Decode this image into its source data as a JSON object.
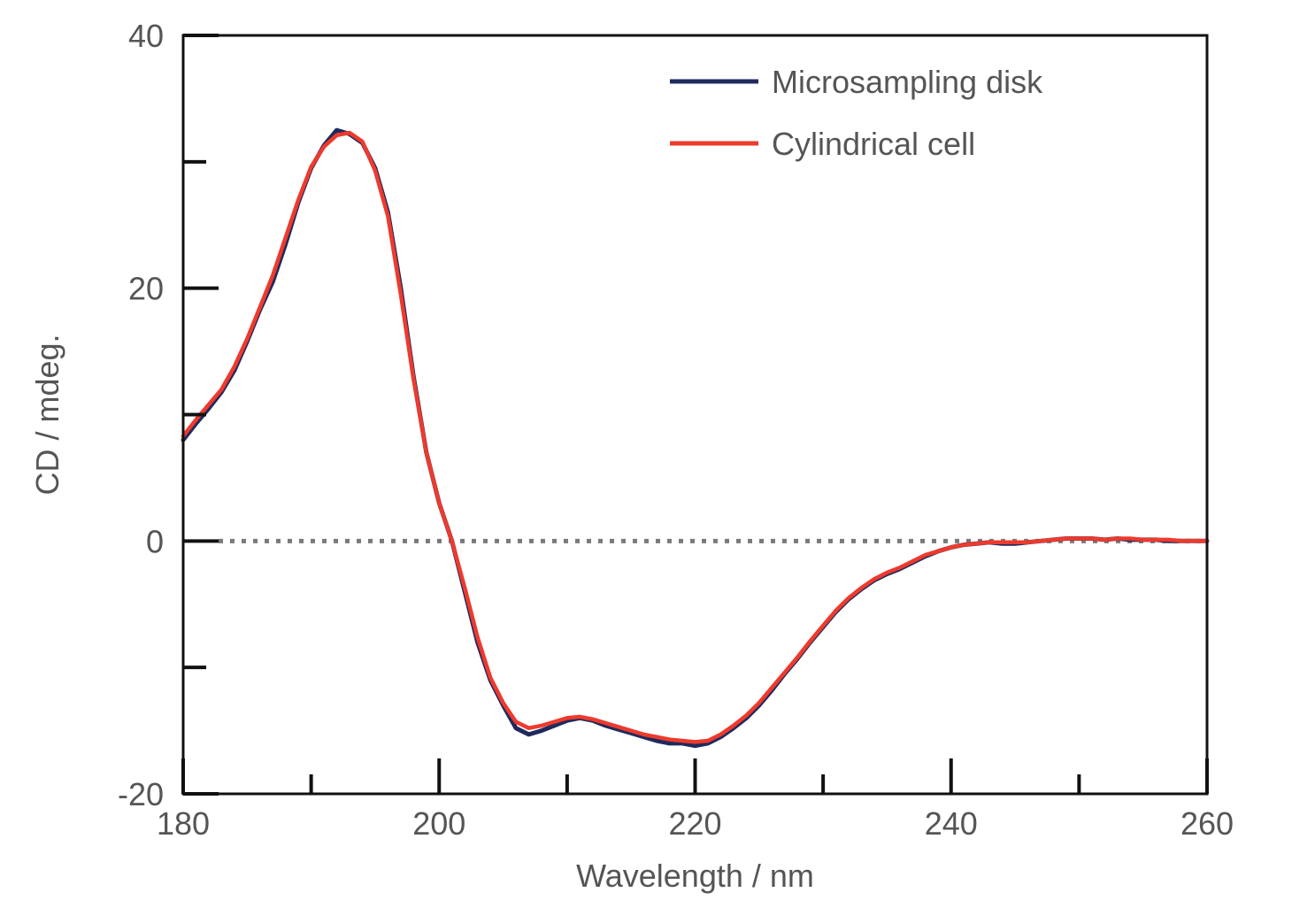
{
  "chart_data": {
    "type": "line",
    "title": "",
    "xlabel": "Wavelength / nm",
    "ylabel": "CD / mdeg.",
    "xlim": [
      180,
      260
    ],
    "ylim": [
      -20,
      40
    ],
    "x_ticks": [
      180,
      200,
      220,
      240,
      260
    ],
    "x_tick_labels": [
      "180",
      "200",
      "220",
      "240",
      "260"
    ],
    "x_minor_ticks": [
      190,
      210,
      230,
      250
    ],
    "y_ticks": [
      -20,
      0,
      20,
      40
    ],
    "y_tick_labels": [
      "-20",
      "0",
      "20",
      "40"
    ],
    "y_minor_ticks": [
      -10,
      10,
      30
    ],
    "grid": false,
    "zero_line": {
      "y": 0,
      "style": "dotted",
      "color": "#7a7a7a"
    },
    "legend": {
      "position": "top-right"
    },
    "series": [
      {
        "name": "Microsampling disk",
        "color": "#1f2a5c",
        "x": [
          180,
          181,
          182,
          183,
          184,
          185,
          186,
          187,
          188,
          189,
          190,
          191,
          192,
          193,
          194,
          195,
          196,
          197,
          198,
          199,
          200,
          201,
          202,
          203,
          204,
          205,
          206,
          207,
          208,
          209,
          210,
          211,
          212,
          213,
          214,
          215,
          216,
          217,
          218,
          219,
          220,
          221,
          222,
          223,
          224,
          225,
          226,
          227,
          228,
          229,
          230,
          231,
          232,
          233,
          234,
          235,
          236,
          237,
          238,
          239,
          240,
          241,
          242,
          243,
          244,
          245,
          246,
          247,
          248,
          249,
          250,
          251,
          252,
          253,
          254,
          255,
          256,
          257,
          258,
          259,
          260
        ],
        "values": [
          8.0,
          9.3,
          10.5,
          11.8,
          13.5,
          15.8,
          18.3,
          20.5,
          23.5,
          26.8,
          29.5,
          31.3,
          32.5,
          32.2,
          31.5,
          29.5,
          26.0,
          20.0,
          13.0,
          7.0,
          3.0,
          0.0,
          -4.0,
          -8.0,
          -11.0,
          -13.0,
          -14.8,
          -15.3,
          -15.0,
          -14.6,
          -14.2,
          -14.0,
          -14.2,
          -14.6,
          -14.9,
          -15.2,
          -15.5,
          -15.8,
          -16.0,
          -16.0,
          -16.2,
          -16.0,
          -15.5,
          -14.8,
          -14.0,
          -13.0,
          -11.8,
          -10.5,
          -9.3,
          -8.0,
          -6.8,
          -5.6,
          -4.6,
          -3.8,
          -3.1,
          -2.6,
          -2.2,
          -1.7,
          -1.2,
          -0.8,
          -0.5,
          -0.3,
          -0.2,
          -0.1,
          -0.2,
          -0.2,
          -0.1,
          0.0,
          0.1,
          0.2,
          0.2,
          0.2,
          0.1,
          0.2,
          0.1,
          0.1,
          0.1,
          0.0,
          0.0,
          0.0,
          0.0
        ]
      },
      {
        "name": "Cylindrical cell",
        "color": "#ee3a2d",
        "x": [
          180,
          181,
          182,
          183,
          184,
          185,
          186,
          187,
          188,
          189,
          190,
          191,
          192,
          193,
          194,
          195,
          196,
          197,
          198,
          199,
          200,
          201,
          202,
          203,
          204,
          205,
          206,
          207,
          208,
          209,
          210,
          211,
          212,
          213,
          214,
          215,
          216,
          217,
          218,
          219,
          220,
          221,
          222,
          223,
          224,
          225,
          226,
          227,
          228,
          229,
          230,
          231,
          232,
          233,
          234,
          235,
          236,
          237,
          238,
          239,
          240,
          241,
          242,
          243,
          244,
          245,
          246,
          247,
          248,
          249,
          250,
          251,
          252,
          253,
          254,
          255,
          256,
          257,
          258,
          259,
          260
        ],
        "values": [
          8.3,
          9.6,
          10.8,
          12.0,
          13.8,
          16.0,
          18.5,
          21.0,
          24.0,
          27.0,
          29.6,
          31.2,
          32.1,
          32.3,
          31.6,
          29.3,
          25.7,
          19.5,
          12.8,
          7.0,
          3.0,
          0.0,
          -3.7,
          -7.6,
          -10.8,
          -12.8,
          -14.3,
          -14.8,
          -14.6,
          -14.3,
          -14.0,
          -13.9,
          -14.1,
          -14.4,
          -14.7,
          -15.0,
          -15.3,
          -15.5,
          -15.7,
          -15.8,
          -15.9,
          -15.8,
          -15.3,
          -14.6,
          -13.8,
          -12.8,
          -11.6,
          -10.4,
          -9.2,
          -7.9,
          -6.7,
          -5.5,
          -4.5,
          -3.7,
          -3.0,
          -2.5,
          -2.1,
          -1.6,
          -1.1,
          -0.8,
          -0.5,
          -0.3,
          -0.2,
          -0.1,
          -0.1,
          -0.1,
          -0.1,
          0.0,
          0.1,
          0.2,
          0.2,
          0.2,
          0.1,
          0.2,
          0.2,
          0.1,
          0.1,
          0.1,
          0.0,
          0.0,
          0.0
        ]
      }
    ]
  }
}
